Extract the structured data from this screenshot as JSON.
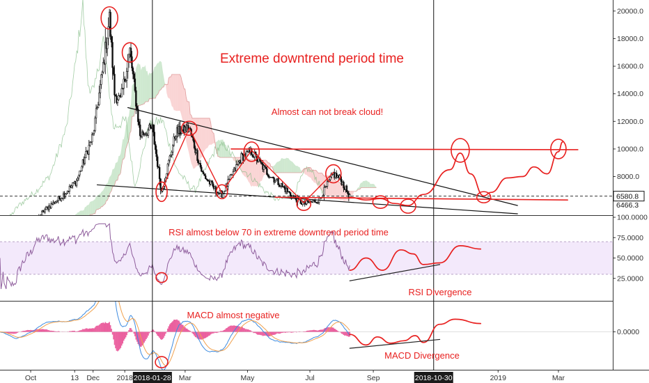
{
  "chart_data": {
    "type": "candlestick",
    "title": "",
    "panes": {
      "price": {
        "y_ticks": [
          "20000.0",
          "18000.0",
          "16000.0",
          "14000.0",
          "12000.0",
          "10000.0",
          "8000.0"
        ],
        "ylim": [
          5200,
          20800
        ],
        "current_price_label": "6580.8",
        "secondary_price_label": "6466.3",
        "current_price": 6580.8,
        "secondary_price": 6466.3,
        "close_path": [
          [
            "2017-09-01",
            4700
          ],
          [
            "2017-09-15",
            3700
          ],
          [
            "2017-10-01",
            4300
          ],
          [
            "2017-10-15",
            5600
          ],
          [
            "2017-11-01",
            6600
          ],
          [
            "2017-11-15",
            7700
          ],
          [
            "2017-12-01",
            11000
          ],
          [
            "2017-12-10",
            15500
          ],
          [
            "2017-12-17",
            19500
          ],
          [
            "2017-12-22",
            14000
          ],
          [
            "2017-12-28",
            13500
          ],
          [
            "2018-01-06",
            17100
          ],
          [
            "2018-01-16",
            11000
          ],
          [
            "2018-01-28",
            11500
          ],
          [
            "2018-02-06",
            6900
          ],
          [
            "2018-02-20",
            11200
          ],
          [
            "2018-03-05",
            11500
          ],
          [
            "2018-03-18",
            8200
          ],
          [
            "2018-04-01",
            6900
          ],
          [
            "2018-04-06",
            6700
          ],
          [
            "2018-04-25",
            9400
          ],
          [
            "2018-05-05",
            9800
          ],
          [
            "2018-05-20",
            8300
          ],
          [
            "2018-06-01",
            7500
          ],
          [
            "2018-06-15",
            6500
          ],
          [
            "2018-06-25",
            6000
          ],
          [
            "2018-07-10",
            6300
          ],
          [
            "2018-07-24",
            8200
          ],
          [
            "2018-07-31",
            7800
          ],
          [
            "2018-08-09",
            6500
          ]
        ],
        "projection": [
          [
            "2018-08-09",
            6500
          ],
          [
            "2018-08-25",
            6300
          ],
          [
            "2018-09-08",
            6400
          ],
          [
            "2018-09-22",
            6050
          ],
          [
            "2018-10-05",
            5900
          ],
          [
            "2018-10-20",
            6700
          ],
          [
            "2018-11-15",
            8500
          ],
          [
            "2018-11-25",
            9700
          ],
          [
            "2018-12-05",
            8200
          ],
          [
            "2018-12-18",
            6600
          ],
          [
            "2018-12-25",
            6850
          ],
          [
            "2019-01-10",
            7900
          ],
          [
            "2019-01-25",
            8000
          ],
          [
            "2019-02-05",
            8700
          ],
          [
            "2019-02-18",
            8200
          ],
          [
            "2019-03-01",
            9800
          ],
          [
            "2019-03-05",
            10500
          ]
        ]
      },
      "rsi": {
        "y_ticks": [
          "100.0000",
          "75.0000",
          "50.0000",
          "25.0000"
        ],
        "ylim": [
          0,
          100
        ],
        "band": [
          30,
          70
        ],
        "projection": [
          [
            "2018-08-09",
            35
          ],
          [
            "2018-08-25",
            50
          ],
          [
            "2018-09-10",
            35
          ],
          [
            "2018-09-28",
            60
          ],
          [
            "2018-10-10",
            55
          ],
          [
            "2018-10-20",
            42
          ],
          [
            "2018-11-05",
            44
          ],
          [
            "2018-11-25",
            65
          ],
          [
            "2018-12-15",
            61
          ]
        ]
      },
      "macd": {
        "y_ticks": [
          "0.0000"
        ],
        "ylim": [
          -1500,
          1200
        ],
        "projection": [
          [
            "2018-08-09",
            -100
          ],
          [
            "2018-08-25",
            -520
          ],
          [
            "2018-09-05",
            -200
          ],
          [
            "2018-09-18",
            -450
          ],
          [
            "2018-10-01",
            -350
          ],
          [
            "2018-10-12",
            -150
          ],
          [
            "2018-10-20",
            -420
          ],
          [
            "2018-11-05",
            300
          ],
          [
            "2018-11-20",
            500
          ],
          [
            "2018-12-15",
            330
          ]
        ]
      }
    },
    "x_labels": [
      {
        "label": "Oct",
        "date": "2017-10-01"
      },
      {
        "label": "13",
        "date": "2017-11-13"
      },
      {
        "label": "Dec",
        "date": "2017-12-01"
      },
      {
        "label": "2018",
        "date": "2018-01-01"
      },
      {
        "label": "Mar",
        "date": "2018-03-01"
      },
      {
        "label": "May",
        "date": "2018-05-01"
      },
      {
        "label": "Jul",
        "date": "2018-07-01"
      },
      {
        "label": "Sep",
        "date": "2018-09-01"
      },
      {
        "label": "2019",
        "date": "2019-01-01"
      },
      {
        "label": "Mar",
        "date": "2019-03-01"
      }
    ],
    "x_range": [
      "2017-09-01",
      "2019-03-31"
    ],
    "highlight_dates": [
      {
        "label": "2018-01-28",
        "date": "2018-01-28"
      },
      {
        "label": "2018-10-30",
        "date": "2018-10-30"
      }
    ],
    "annotations": [
      {
        "text": "Extreme downtrend period time",
        "pane": "price"
      },
      {
        "text": "Almost can not break cloud!",
        "pane": "price"
      },
      {
        "text": "RSI almost below 70 in extreme downtrend period time",
        "pane": "rsi"
      },
      {
        "text": "RSI Divergence",
        "pane": "rsi"
      },
      {
        "text": "MACD almost negative",
        "pane": "macd"
      },
      {
        "text": "MACD Divergence",
        "pane": "macd"
      }
    ],
    "colors": {
      "annotation": "#e8201f",
      "candle": "#111111",
      "cloud_green": "#a5d6a7",
      "cloud_red": "#f6b1b1",
      "rsi_line": "#8e5d9c",
      "rsi_band": "#f3e9fb",
      "macd_line": "#3d8be0",
      "signal_line": "#f0a04c",
      "histogram": "#e7468f"
    }
  }
}
